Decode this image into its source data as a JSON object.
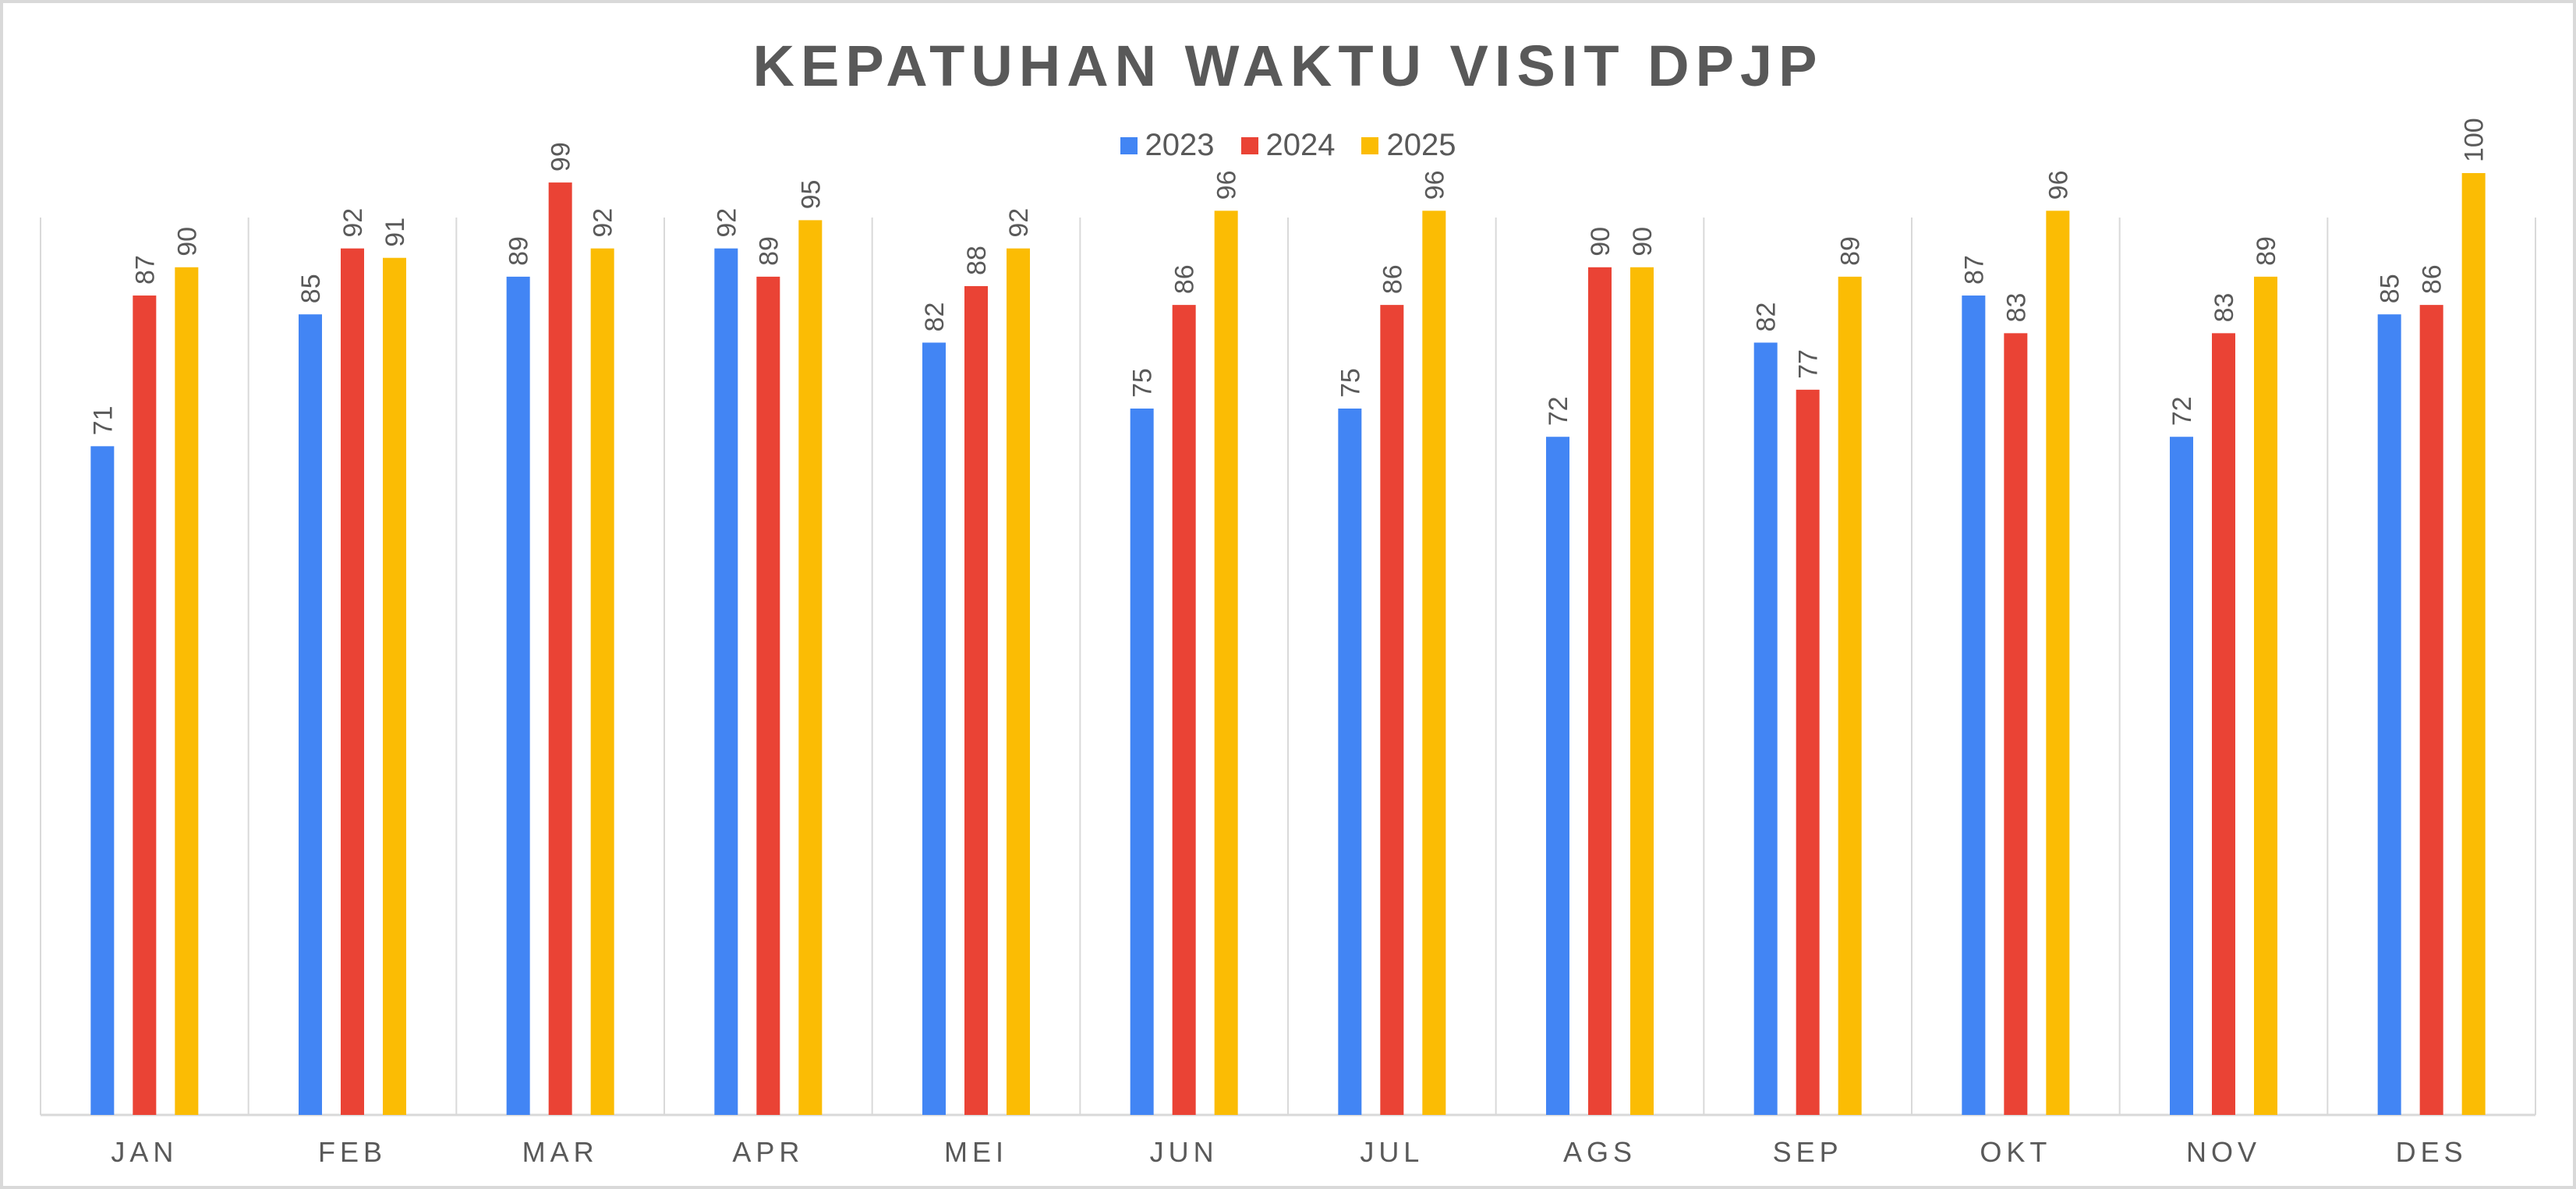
{
  "chart_data": {
    "type": "bar",
    "title": "KEPATUHAN WAKTU VISIT DPJP",
    "xlabel": "",
    "ylabel": "",
    "categories": [
      "JAN",
      "FEB",
      "MAR",
      "APR",
      "MEI",
      "JUN",
      "JUL",
      "AGS",
      "SEP",
      "OKT",
      "NOV",
      "DES"
    ],
    "series": [
      {
        "name": "2023",
        "color": "#4285F4",
        "values": [
          71,
          85,
          89,
          92,
          82,
          75,
          75,
          72,
          82,
          87,
          72,
          85
        ]
      },
      {
        "name": "2024",
        "color": "#EA4335",
        "values": [
          87,
          92,
          99,
          89,
          88,
          86,
          86,
          90,
          77,
          83,
          83,
          86
        ]
      },
      {
        "name": "2025",
        "color": "#FBBC04",
        "values": [
          90,
          91,
          92,
          95,
          92,
          96,
          96,
          90,
          89,
          96,
          89,
          100
        ]
      }
    ],
    "ylim": [
      0,
      100
    ],
    "grid": "vertical category separators",
    "legend_position": "top-center",
    "data_labels": "rotated above bars"
  }
}
